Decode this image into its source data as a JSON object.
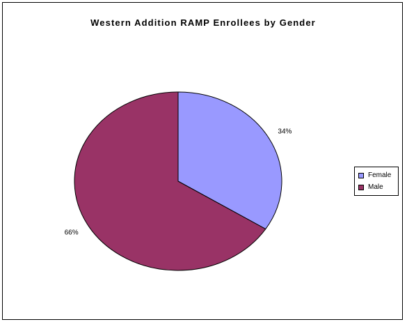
{
  "chart_data": {
    "type": "pie",
    "title": "Western Addition RAMP Enrollees by Gender",
    "categories": [
      "Female",
      "Male"
    ],
    "values": [
      34,
      66
    ],
    "data_labels": [
      "34%",
      "66%"
    ],
    "colors": [
      "#9999ff",
      "#993366"
    ],
    "legend": {
      "placement": "right",
      "entries": [
        "Female",
        "Male"
      ]
    }
  }
}
